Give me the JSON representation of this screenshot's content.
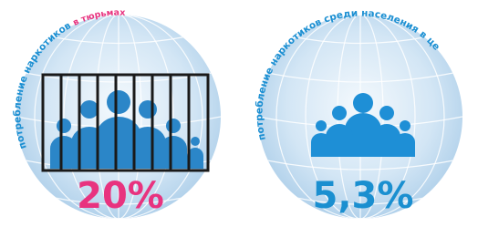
{
  "panels": [
    {
      "caption": "потребление наркотиков",
      "caption_highlight": "в тюрьмах",
      "value": "20%"
    },
    {
      "caption": "потребление наркотиков среди населения в целом",
      "value": "5,3%"
    }
  ]
}
